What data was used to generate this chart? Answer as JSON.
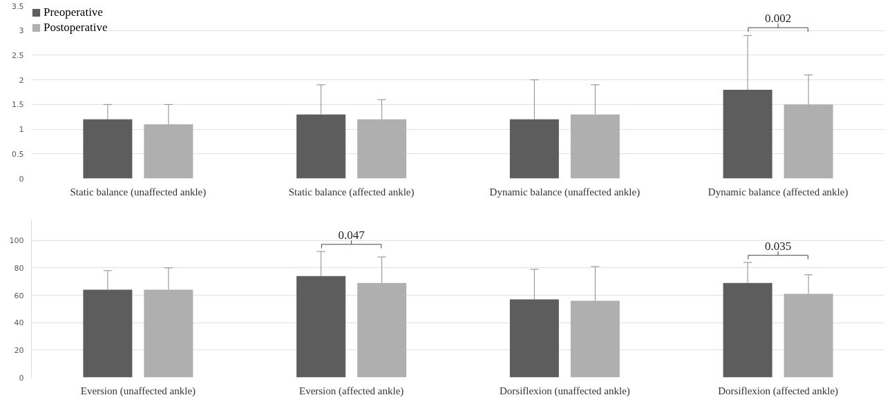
{
  "chart_data": [
    {
      "type": "bar",
      "categories": [
        "Static balance (unaffected ankle)",
        "Static balance (affected ankle)",
        "Dynamic balance (unaffected ankle)",
        "Dynamic balance (affected ankle)"
      ],
      "series": [
        {
          "name": "Preoperative",
          "color": "#5d5d5d",
          "values": [
            1.2,
            1.3,
            1.2,
            1.8
          ],
          "errors": [
            [
              1.2,
              1.5
            ],
            [
              1.3,
              1.9
            ],
            [
              1.2,
              2.0
            ],
            [
              1.8,
              2.9
            ]
          ]
        },
        {
          "name": "Postoperative",
          "color": "#afafaf",
          "values": [
            1.1,
            1.2,
            1.3,
            1.5
          ],
          "errors": [
            [
              1.1,
              1.5
            ],
            [
              1.2,
              1.6
            ],
            [
              1.3,
              1.9
            ],
            [
              1.5,
              2.1
            ]
          ]
        }
      ],
      "ylim": [
        0,
        3.5
      ],
      "yticks": [
        0,
        0.5,
        1,
        1.5,
        2,
        2.5,
        3,
        3.5
      ],
      "grid": "y",
      "legend": "top left",
      "annotations": [
        "0.002"
      ]
    },
    {
      "type": "bar",
      "categories": [
        "Eversion (unaffected ankle)",
        "Eversion (affected ankle)",
        "Dorsiflexion (unaffected ankle)",
        "Dorsiflexion (affected ankle)"
      ],
      "series": [
        {
          "color": "#5d5d5d",
          "values": [
            64,
            74,
            57,
            69
          ],
          "errors": [
            [
              64,
              78
            ],
            [
              74,
              92
            ],
            [
              57,
              79
            ],
            [
              69,
              84
            ]
          ]
        },
        {
          "color": "#afafaf",
          "values": [
            64,
            69,
            56,
            61
          ],
          "errors": [
            [
              64,
              80
            ],
            [
              69,
              88
            ],
            [
              56,
              81
            ],
            [
              61,
              75
            ]
          ]
        }
      ],
      "ylim": [
        0,
        115
      ],
      "yticks": [
        0,
        20,
        40,
        60,
        80,
        100
      ],
      "grid": "y",
      "annotations": [
        "0.047",
        "0.035"
      ]
    }
  ]
}
